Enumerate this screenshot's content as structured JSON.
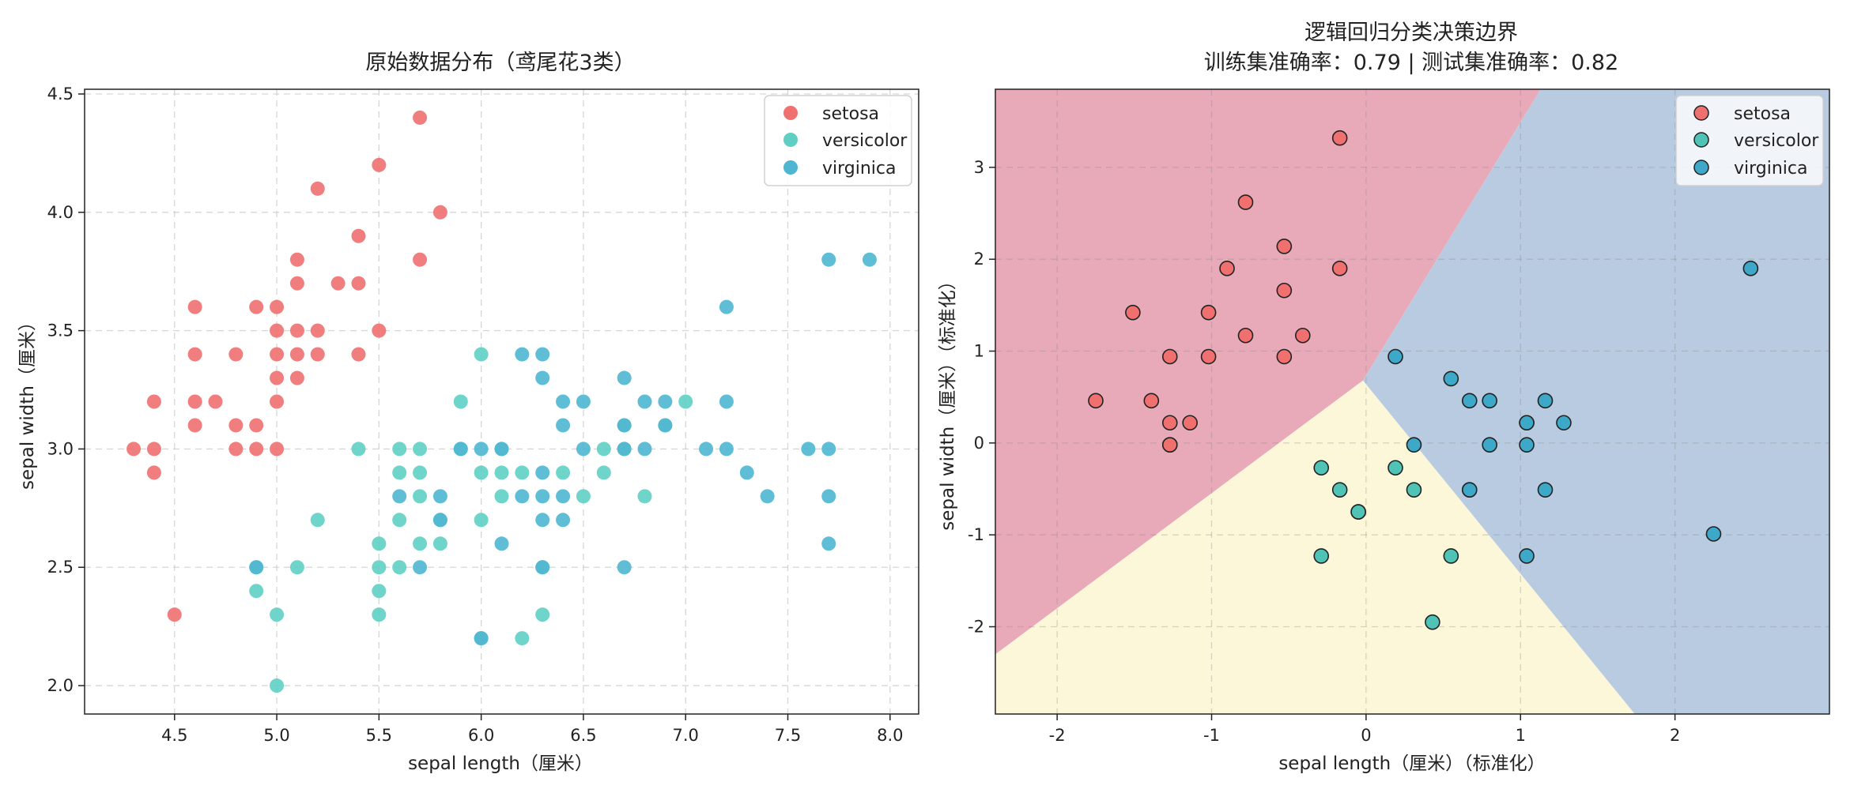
{
  "chart_data": [
    {
      "type": "scatter",
      "title": "原始数据分布（鸢尾花3类）",
      "xlabel": "sepal length（厘米）",
      "ylabel": "sepal width（厘米）",
      "xlim": [
        4.06,
        8.14
      ],
      "ylim": [
        1.88,
        4.52
      ],
      "xticks": [
        "4.5",
        "5.0",
        "5.5",
        "6.0",
        "6.5",
        "7.0",
        "7.5",
        "8.0"
      ],
      "yticks": [
        "2.0",
        "2.5",
        "3.0",
        "3.5",
        "4.0",
        "4.5"
      ],
      "grid": true,
      "legend_position": "top-right",
      "series": [
        {
          "name": "setosa",
          "color": "#f07070",
          "points": [
            [
              4.3,
              3.0
            ],
            [
              4.4,
              3.2
            ],
            [
              4.4,
              3.0
            ],
            [
              4.4,
              2.9
            ],
            [
              4.5,
              2.3
            ],
            [
              4.6,
              3.6
            ],
            [
              4.6,
              3.4
            ],
            [
              4.6,
              3.2
            ],
            [
              4.6,
              3.1
            ],
            [
              4.7,
              3.2
            ],
            [
              4.8,
              3.4
            ],
            [
              4.8,
              3.1
            ],
            [
              4.8,
              3.0
            ],
            [
              4.9,
              3.6
            ],
            [
              4.9,
              3.1
            ],
            [
              4.9,
              3.0
            ],
            [
              5.0,
              3.6
            ],
            [
              5.0,
              3.5
            ],
            [
              5.0,
              3.4
            ],
            [
              5.0,
              3.3
            ],
            [
              5.0,
              3.2
            ],
            [
              5.0,
              3.0
            ],
            [
              5.1,
              3.8
            ],
            [
              5.1,
              3.7
            ],
            [
              5.1,
              3.5
            ],
            [
              5.1,
              3.4
            ],
            [
              5.1,
              3.3
            ],
            [
              5.2,
              4.1
            ],
            [
              5.2,
              3.5
            ],
            [
              5.2,
              3.4
            ],
            [
              5.3,
              3.7
            ],
            [
              5.4,
              3.9
            ],
            [
              5.4,
              3.7
            ],
            [
              5.4,
              3.4
            ],
            [
              5.5,
              4.2
            ],
            [
              5.5,
              3.5
            ],
            [
              5.7,
              4.4
            ],
            [
              5.7,
              3.8
            ],
            [
              5.8,
              4.0
            ]
          ]
        },
        {
          "name": "versicolor",
          "color": "#5fcfc3",
          "points": [
            [
              4.9,
              2.5
            ],
            [
              4.9,
              2.4
            ],
            [
              5.0,
              2.3
            ],
            [
              5.0,
              2.0
            ],
            [
              5.1,
              2.5
            ],
            [
              5.2,
              2.7
            ],
            [
              5.4,
              3.0
            ],
            [
              5.5,
              2.6
            ],
            [
              5.5,
              2.5
            ],
            [
              5.5,
              2.4
            ],
            [
              5.5,
              2.3
            ],
            [
              5.6,
              3.0
            ],
            [
              5.6,
              2.9
            ],
            [
              5.6,
              2.7
            ],
            [
              5.6,
              2.5
            ],
            [
              5.7,
              3.0
            ],
            [
              5.7,
              2.9
            ],
            [
              5.7,
              2.8
            ],
            [
              5.7,
              2.6
            ],
            [
              5.8,
              2.7
            ],
            [
              5.8,
              2.6
            ],
            [
              5.9,
              3.2
            ],
            [
              5.9,
              3.0
            ],
            [
              6.0,
              3.4
            ],
            [
              6.0,
              2.9
            ],
            [
              6.0,
              2.7
            ],
            [
              6.0,
              2.2
            ],
            [
              6.1,
              3.0
            ],
            [
              6.1,
              2.9
            ],
            [
              6.1,
              2.8
            ],
            [
              6.2,
              2.9
            ],
            [
              6.2,
              2.2
            ],
            [
              6.3,
              2.5
            ],
            [
              6.3,
              2.3
            ],
            [
              6.4,
              2.9
            ],
            [
              6.5,
              2.8
            ],
            [
              6.6,
              3.0
            ],
            [
              6.6,
              2.9
            ],
            [
              6.7,
              3.1
            ],
            [
              6.7,
              3.0
            ],
            [
              6.8,
              2.8
            ],
            [
              6.9,
              3.1
            ],
            [
              7.0,
              3.2
            ]
          ]
        },
        {
          "name": "virginica",
          "color": "#4fb6d2",
          "points": [
            [
              4.9,
              2.5
            ],
            [
              5.6,
              2.8
            ],
            [
              5.7,
              2.5
            ],
            [
              5.8,
              2.8
            ],
            [
              5.8,
              2.7
            ],
            [
              5.9,
              3.0
            ],
            [
              6.0,
              3.0
            ],
            [
              6.0,
              2.2
            ],
            [
              6.1,
              3.0
            ],
            [
              6.1,
              2.6
            ],
            [
              6.2,
              3.4
            ],
            [
              6.2,
              2.8
            ],
            [
              6.3,
              3.4
            ],
            [
              6.3,
              3.3
            ],
            [
              6.3,
              2.9
            ],
            [
              6.3,
              2.8
            ],
            [
              6.3,
              2.7
            ],
            [
              6.3,
              2.5
            ],
            [
              6.4,
              3.2
            ],
            [
              6.4,
              3.1
            ],
            [
              6.4,
              2.8
            ],
            [
              6.4,
              2.7
            ],
            [
              6.5,
              3.2
            ],
            [
              6.5,
              3.0
            ],
            [
              6.7,
              3.3
            ],
            [
              6.7,
              3.1
            ],
            [
              6.7,
              3.0
            ],
            [
              6.7,
              2.5
            ],
            [
              6.8,
              3.2
            ],
            [
              6.8,
              3.0
            ],
            [
              6.9,
              3.2
            ],
            [
              6.9,
              3.1
            ],
            [
              7.1,
              3.0
            ],
            [
              7.2,
              3.6
            ],
            [
              7.2,
              3.2
            ],
            [
              7.2,
              3.0
            ],
            [
              7.3,
              2.9
            ],
            [
              7.4,
              2.8
            ],
            [
              7.6,
              3.0
            ],
            [
              7.7,
              3.8
            ],
            [
              7.7,
              3.0
            ],
            [
              7.7,
              2.8
            ],
            [
              7.7,
              2.6
            ],
            [
              7.9,
              3.8
            ]
          ]
        }
      ]
    },
    {
      "type": "scatter",
      "title": "逻辑回归分类决策边界",
      "subtitle": "训练集准确率：0.79 | 测试集准确率：0.82",
      "xlabel": "sepal length（厘米）（标准化）",
      "ylabel": "sepal width（厘米）（标准化）",
      "xlim": [
        -2.4,
        3.0
      ],
      "ylim": [
        -2.95,
        3.85
      ],
      "xticks": [
        "-2",
        "-1",
        "0",
        "1",
        "2"
      ],
      "yticks": [
        "-2",
        "-1",
        "0",
        "1",
        "2",
        "3"
      ],
      "grid": true,
      "legend_position": "top-right",
      "regions": [
        {
          "name": "setosa",
          "color": "#e8aab9",
          "polygon": [
            [
              -2.4,
              -2.3
            ],
            [
              -0.02,
              0.68
            ],
            [
              1.13,
              3.85
            ],
            [
              -2.4,
              3.85
            ]
          ]
        },
        {
          "name": "versicolor",
          "color": "#fdf7d9",
          "polygon": [
            [
              -2.4,
              -2.3
            ],
            [
              -0.02,
              0.68
            ],
            [
              1.74,
              -2.95
            ],
            [
              -2.4,
              -2.95
            ]
          ]
        },
        {
          "name": "virginica",
          "color": "#b9cbe1",
          "polygon": [
            [
              -0.02,
              0.68
            ],
            [
              1.13,
              3.85
            ],
            [
              3.0,
              3.85
            ],
            [
              3.0,
              -2.95
            ],
            [
              1.74,
              -2.95
            ]
          ]
        }
      ],
      "series": [
        {
          "name": "setosa",
          "color": "#f07070",
          "points": [
            [
              -0.17,
              3.32
            ],
            [
              -0.78,
              2.62
            ],
            [
              -0.53,
              2.14
            ],
            [
              -0.9,
              1.9
            ],
            [
              -0.17,
              1.9
            ],
            [
              -0.53,
              1.66
            ],
            [
              -1.51,
              1.42
            ],
            [
              -1.02,
              1.42
            ],
            [
              -0.78,
              1.17
            ],
            [
              -0.41,
              1.17
            ],
            [
              -1.27,
              0.94
            ],
            [
              -1.02,
              0.94
            ],
            [
              -0.53,
              0.94
            ],
            [
              -1.75,
              0.46
            ],
            [
              -1.39,
              0.46
            ],
            [
              -1.27,
              0.22
            ],
            [
              -1.14,
              0.22
            ],
            [
              -1.27,
              -0.02
            ],
            [
              -1.27,
              -0.02
            ]
          ]
        },
        {
          "name": "versicolor",
          "color": "#4fc4b6",
          "points": [
            [
              -0.29,
              -0.27
            ],
            [
              -0.17,
              -0.51
            ],
            [
              -0.05,
              -0.75
            ],
            [
              -0.05,
              -0.75
            ],
            [
              -0.29,
              -1.23
            ],
            [
              0.19,
              -0.27
            ],
            [
              0.31,
              -0.51
            ],
            [
              0.55,
              -1.23
            ],
            [
              0.43,
              -1.95
            ]
          ]
        },
        {
          "name": "virginica",
          "color": "#3ea8c8",
          "points": [
            [
              0.19,
              0.94
            ],
            [
              0.55,
              0.7
            ],
            [
              0.67,
              0.46
            ],
            [
              0.8,
              0.46
            ],
            [
              1.16,
              0.46
            ],
            [
              1.04,
              0.22
            ],
            [
              1.04,
              0.22
            ],
            [
              1.28,
              0.22
            ],
            [
              0.31,
              -0.02
            ],
            [
              0.8,
              -0.02
            ],
            [
              1.04,
              -0.02
            ],
            [
              0.67,
              -0.51
            ],
            [
              0.67,
              -0.51
            ],
            [
              1.16,
              -0.51
            ],
            [
              1.04,
              -1.23
            ],
            [
              2.25,
              -0.99
            ],
            [
              2.49,
              1.9
            ]
          ]
        }
      ]
    }
  ]
}
